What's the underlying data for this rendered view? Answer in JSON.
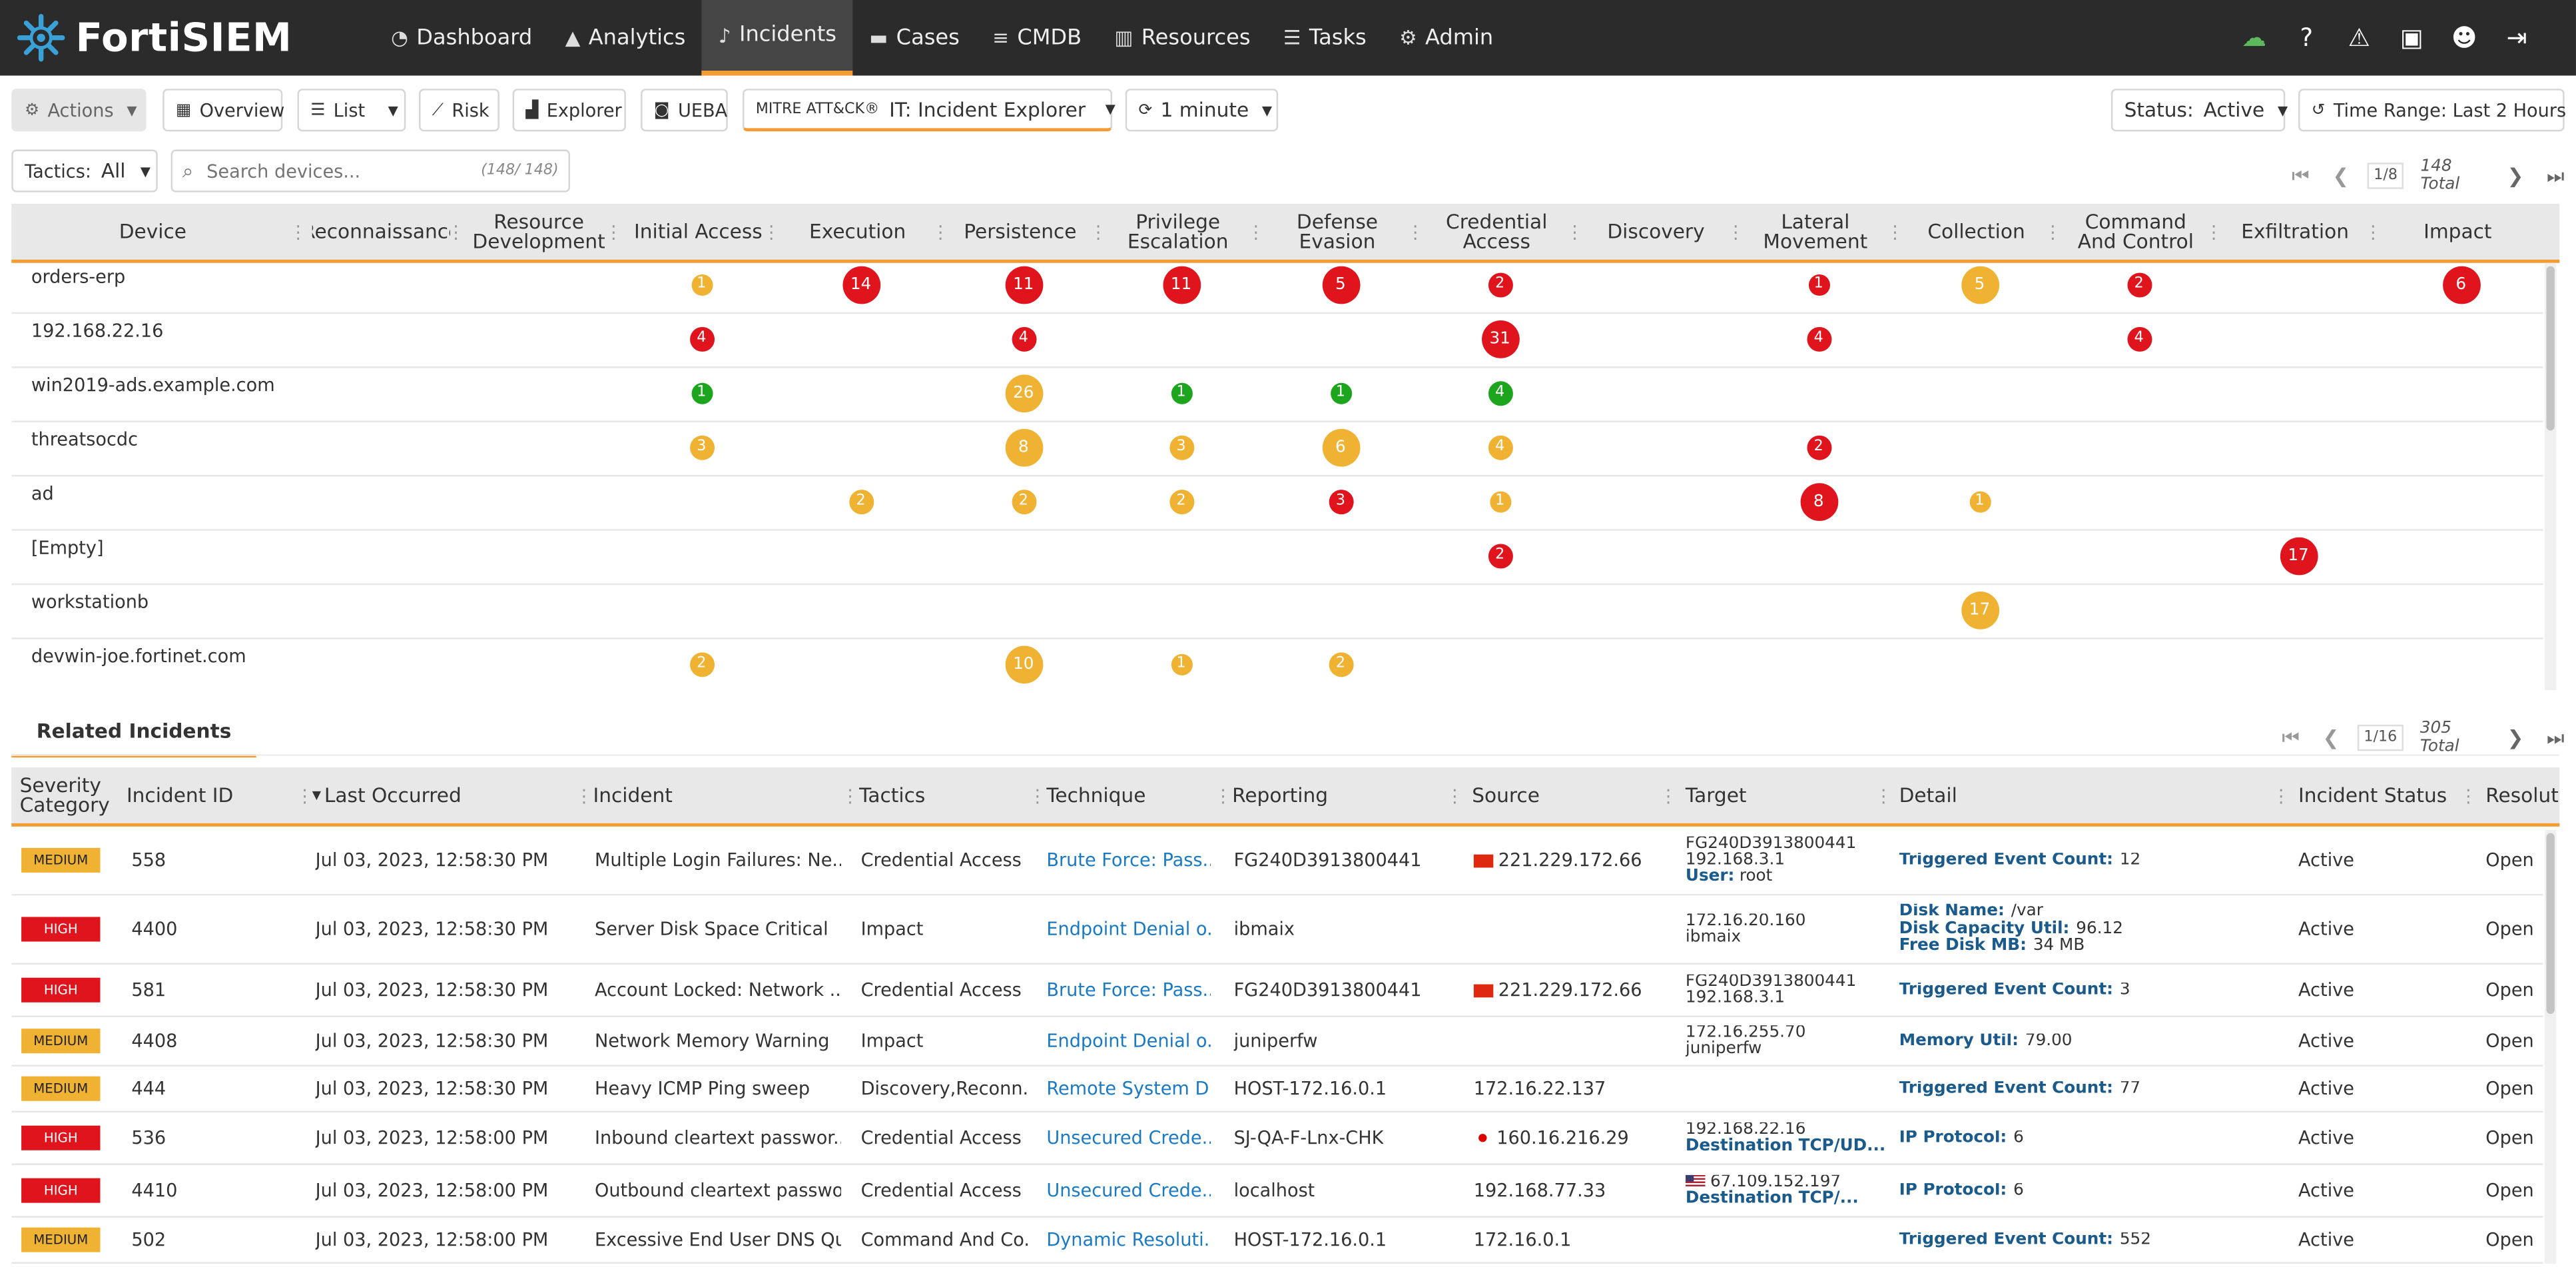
{
  "app": {
    "name": "FortiSIEM"
  },
  "colors": {
    "accent": "#f39c33",
    "red": "#e0141d",
    "amber": "#f0b232",
    "green": "#1ea51e",
    "link": "#1a7ac4"
  },
  "nav": {
    "items": [
      {
        "label": "Dashboard",
        "icon": "dashboard-icon"
      },
      {
        "label": "Analytics",
        "icon": "chart-icon"
      },
      {
        "label": "Incidents",
        "icon": "bell-icon"
      },
      {
        "label": "Cases",
        "icon": "folder-icon"
      },
      {
        "label": "CMDB",
        "icon": "database-icon"
      },
      {
        "label": "Resources",
        "icon": "bar-chart-icon"
      },
      {
        "label": "Tasks",
        "icon": "list-icon"
      },
      {
        "label": "Admin",
        "icon": "cogs-icon"
      }
    ],
    "active": "Incidents",
    "right_icons": [
      "cloud-download-icon",
      "help-icon",
      "alert-icon",
      "id-card-icon",
      "user-icon",
      "logout-icon"
    ]
  },
  "toolbar": {
    "actions": "Actions",
    "overview": "Overview",
    "list": "List",
    "risk": "Risk",
    "explorer": "Explorer",
    "ueba": "UEBA",
    "mitre_prefix": "MITRE ATT&CK®",
    "mitre_view": "IT: Incident Explorer",
    "refresh": "1 minute",
    "status_label": "Status:",
    "status_value": "Active",
    "time_range": "Time Range: Last 2 Hours"
  },
  "filter": {
    "tactics_label": "Tactics:",
    "tactics_value": "All",
    "search_placeholder": "Search devices...",
    "search_count": "(148/ 148)"
  },
  "matrix_pager": {
    "page": "1/8",
    "total": "148 Total"
  },
  "matrix": {
    "device_header": "Device",
    "tactics": [
      {
        "l1": "Reconnaissance",
        "l2": ""
      },
      {
        "l1": "Resource",
        "l2": "Development"
      },
      {
        "l1": "Initial Access",
        "l2": ""
      },
      {
        "l1": "Execution",
        "l2": ""
      },
      {
        "l1": "Persistence",
        "l2": ""
      },
      {
        "l1": "Privilege",
        "l2": "Escalation"
      },
      {
        "l1": "Defense",
        "l2": "Evasion"
      },
      {
        "l1": "Credential",
        "l2": "Access"
      },
      {
        "l1": "Discovery",
        "l2": ""
      },
      {
        "l1": "Lateral",
        "l2": "Movement"
      },
      {
        "l1": "Collection",
        "l2": ""
      },
      {
        "l1": "Command",
        "l2": "And Control"
      },
      {
        "l1": "Exfiltration",
        "l2": ""
      },
      {
        "l1": "Impact",
        "l2": ""
      }
    ],
    "rows": [
      {
        "device": "orders-erp",
        "cells": [
          null,
          null,
          {
            "n": "1",
            "c": "amber"
          },
          {
            "n": "14",
            "c": "red"
          },
          {
            "n": "11",
            "c": "red"
          },
          {
            "n": "11",
            "c": "red"
          },
          {
            "n": "5",
            "c": "red"
          },
          {
            "n": "2",
            "c": "red"
          },
          null,
          {
            "n": "1",
            "c": "red"
          },
          {
            "n": "5",
            "c": "amber"
          },
          {
            "n": "2",
            "c": "red"
          },
          null,
          {
            "n": "6",
            "c": "red"
          }
        ]
      },
      {
        "device": "192.168.22.16",
        "cells": [
          null,
          null,
          {
            "n": "4",
            "c": "red"
          },
          null,
          {
            "n": "4",
            "c": "red"
          },
          null,
          null,
          {
            "n": "31",
            "c": "red"
          },
          null,
          {
            "n": "4",
            "c": "red"
          },
          null,
          {
            "n": "4",
            "c": "red"
          },
          null,
          null
        ]
      },
      {
        "device": "win2019-ads.example.com",
        "cells": [
          null,
          null,
          {
            "n": "1",
            "c": "green"
          },
          null,
          {
            "n": "26",
            "c": "amber"
          },
          {
            "n": "1",
            "c": "green"
          },
          {
            "n": "1",
            "c": "green"
          },
          {
            "n": "4",
            "c": "green"
          },
          null,
          null,
          null,
          null,
          null,
          null
        ]
      },
      {
        "device": "threatsocdc",
        "cells": [
          null,
          null,
          {
            "n": "3",
            "c": "amber"
          },
          null,
          {
            "n": "8",
            "c": "amber"
          },
          {
            "n": "3",
            "c": "amber"
          },
          {
            "n": "6",
            "c": "amber"
          },
          {
            "n": "4",
            "c": "amber"
          },
          null,
          {
            "n": "2",
            "c": "red"
          },
          null,
          null,
          null,
          null
        ]
      },
      {
        "device": "ad",
        "cells": [
          null,
          null,
          null,
          {
            "n": "2",
            "c": "amber"
          },
          {
            "n": "2",
            "c": "amber"
          },
          {
            "n": "2",
            "c": "amber"
          },
          {
            "n": "3",
            "c": "red"
          },
          {
            "n": "1",
            "c": "amber"
          },
          null,
          {
            "n": "8",
            "c": "red"
          },
          {
            "n": "1",
            "c": "amber"
          },
          null,
          null,
          null
        ]
      },
      {
        "device": "[Empty]",
        "cells": [
          null,
          null,
          null,
          null,
          null,
          null,
          null,
          {
            "n": "2",
            "c": "red"
          },
          null,
          null,
          null,
          null,
          {
            "n": "17",
            "c": "red"
          },
          null
        ]
      },
      {
        "device": "workstationb",
        "cells": [
          null,
          null,
          null,
          null,
          null,
          null,
          null,
          null,
          null,
          null,
          {
            "n": "17",
            "c": "amber"
          },
          null,
          null,
          null
        ]
      },
      {
        "device": "devwin-joe.fortinet.com",
        "cells": [
          null,
          null,
          {
            "n": "2",
            "c": "amber"
          },
          null,
          {
            "n": "10",
            "c": "amber"
          },
          {
            "n": "1",
            "c": "amber"
          },
          {
            "n": "2",
            "c": "amber"
          },
          null,
          null,
          null,
          null,
          null,
          null,
          null
        ]
      }
    ]
  },
  "related": {
    "tab": "Related Incidents",
    "pager": {
      "page": "1/16",
      "total": "305 Total"
    },
    "headers": {
      "severity": [
        "Severity",
        "Category"
      ],
      "incident_id": "Incident ID",
      "last_occurred": "Last Occurred",
      "incident": "Incident",
      "tactics": "Tactics",
      "technique": "Technique",
      "reporting": "Reporting",
      "source": "Source",
      "target": "Target",
      "detail": "Detail",
      "status": "Incident Status",
      "resolution": "Resolution"
    },
    "rows": [
      {
        "severity": "MEDIUM",
        "id": "558",
        "occurred": "Jul 03, 2023, 12:58:30 PM",
        "incident": "Multiple Login Failures: Ne...",
        "tactics": "Credential Access",
        "technique": "Brute Force: Pass...",
        "reporting": "FG240D3913800441",
        "source": "221.229.172.66",
        "source_flag": "cn",
        "target": [
          "FG240D3913800441",
          "192.168.3.1"
        ],
        "target_user": {
          "k": "User:",
          "v": "root"
        },
        "detail": [
          {
            "k": "Triggered Event Count:",
            "v": "12"
          }
        ],
        "status": "Active",
        "resolution": "Open"
      },
      {
        "severity": "HIGH",
        "id": "4400",
        "occurred": "Jul 03, 2023, 12:58:30 PM",
        "incident": "Server Disk Space Critical",
        "tactics": "Impact",
        "technique": "Endpoint Denial o...",
        "reporting": "ibmaix",
        "source": "",
        "source_flag": "",
        "target": [
          "172.16.20.160",
          "ibmaix"
        ],
        "target_user": null,
        "detail": [
          {
            "k": "Disk Name:",
            "v": "/var"
          },
          {
            "k": "Disk Capacity Util:",
            "v": "96.12"
          },
          {
            "k": "Free Disk MB:",
            "v": "34 MB"
          }
        ],
        "status": "Active",
        "resolution": "Open"
      },
      {
        "severity": "HIGH",
        "id": "581",
        "occurred": "Jul 03, 2023, 12:58:30 PM",
        "incident": "Account Locked: Network ...",
        "tactics": "Credential Access",
        "technique": "Brute Force: Pass...",
        "reporting": "FG240D3913800441",
        "source": "221.229.172.66",
        "source_flag": "cn",
        "target": [
          "FG240D3913800441",
          "192.168.3.1"
        ],
        "target_user": null,
        "detail": [
          {
            "k": "Triggered Event Count:",
            "v": "3"
          }
        ],
        "status": "Active",
        "resolution": "Open"
      },
      {
        "severity": "MEDIUM",
        "id": "4408",
        "occurred": "Jul 03, 2023, 12:58:30 PM",
        "incident": "Network Memory Warning",
        "tactics": "Impact",
        "technique": "Endpoint Denial o...",
        "reporting": "juniperfw",
        "source": "",
        "source_flag": "",
        "target": [
          "172.16.255.70",
          "juniperfw"
        ],
        "target_user": null,
        "detail": [
          {
            "k": "Memory Util:",
            "v": "79.00"
          }
        ],
        "status": "Active",
        "resolution": "Open"
      },
      {
        "severity": "MEDIUM",
        "id": "444",
        "occurred": "Jul 03, 2023, 12:58:30 PM",
        "incident": "Heavy ICMP Ping sweep",
        "tactics": "Discovery,Reconn...",
        "technique": "Remote System D...",
        "reporting": "HOST-172.16.0.1",
        "source": "172.16.22.137",
        "source_flag": "",
        "target": [],
        "target_user": null,
        "detail": [
          {
            "k": "Triggered Event Count:",
            "v": "77"
          }
        ],
        "status": "Active",
        "resolution": "Open"
      },
      {
        "severity": "HIGH",
        "id": "536",
        "occurred": "Jul 03, 2023, 12:58:00 PM",
        "incident": "Inbound cleartext passwor...",
        "tactics": "Credential Access",
        "technique": "Unsecured Crede...",
        "reporting": "SJ-QA-F-Lnx-CHK",
        "source": "160.16.216.29",
        "source_flag": "jp",
        "target": [
          "192.168.22.16"
        ],
        "target_sub": "Destination TCP/UD...",
        "target_user": null,
        "detail": [
          {
            "k": "IP Protocol:",
            "v": "6"
          }
        ],
        "status": "Active",
        "resolution": "Open"
      },
      {
        "severity": "HIGH",
        "id": "4410",
        "occurred": "Jul 03, 2023, 12:58:00 PM",
        "incident": "Outbound cleartext passwo...",
        "tactics": "Credential Access",
        "technique": "Unsecured Crede...",
        "reporting": "localhost",
        "source": "192.168.77.33",
        "source_flag": "",
        "target": [
          "67.109.152.197"
        ],
        "target_flag": "us",
        "target_sub": "Destination TCP/...",
        "target_user": null,
        "detail": [
          {
            "k": "IP Protocol:",
            "v": "6"
          }
        ],
        "status": "Active",
        "resolution": "Open"
      },
      {
        "severity": "MEDIUM",
        "id": "502",
        "occurred": "Jul 03, 2023, 12:58:00 PM",
        "incident": "Excessive End User DNS Qu...",
        "tactics": "Command And Co...",
        "technique": "Dynamic Resoluti...",
        "reporting": "HOST-172.16.0.1",
        "source": "172.16.0.1",
        "source_flag": "",
        "target": [],
        "target_user": null,
        "detail": [
          {
            "k": "Triggered Event Count:",
            "v": "552"
          }
        ],
        "status": "Active",
        "resolution": "Open"
      }
    ]
  }
}
